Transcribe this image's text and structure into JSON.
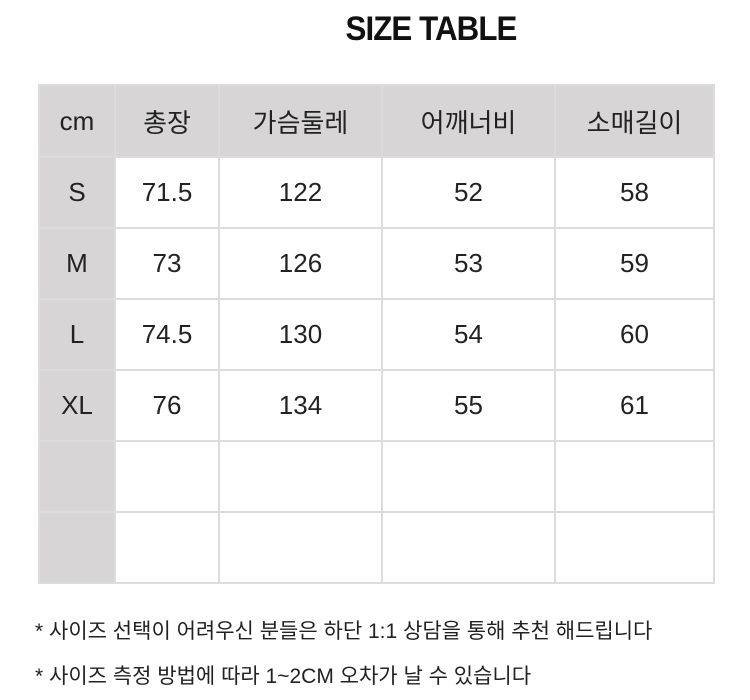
{
  "title": "SIZE TABLE",
  "table": {
    "headers": [
      "cm",
      "총장",
      "가슴둘레",
      "어깨너비",
      "소매길이"
    ],
    "rows": [
      [
        "S",
        "71.5",
        "122",
        "52",
        "58"
      ],
      [
        "M",
        "73",
        "126",
        "53",
        "59"
      ],
      [
        "L",
        "74.5",
        "130",
        "54",
        "60"
      ],
      [
        "XL",
        "76",
        "134",
        "55",
        "61"
      ],
      [
        "",
        "",
        "",
        "",
        ""
      ],
      [
        "",
        "",
        "",
        "",
        ""
      ]
    ]
  },
  "notes": [
    "* 사이즈 선택이 어려우신 분들은 하단 1:1 상담을 통해 추천 해드립니다",
    "* 사이즈 측정 방법에 따라 1~2CM 오차가 날 수 있습니다"
  ],
  "colors": {
    "header_bg": "#d7d5d5",
    "border": "#dcdcdc"
  }
}
